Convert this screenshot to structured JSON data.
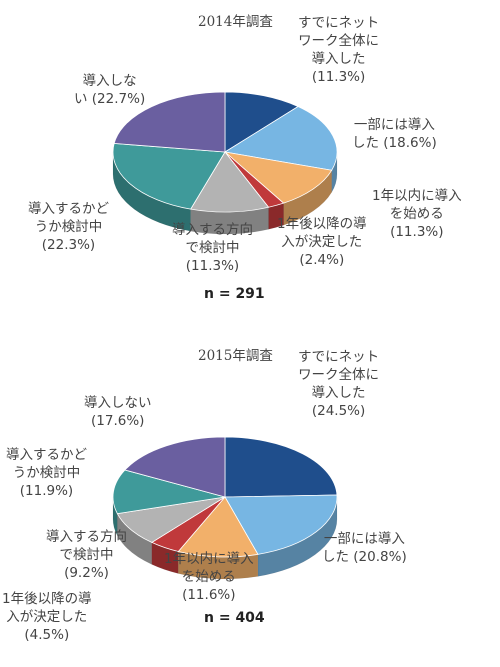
{
  "chart_data": [
    {
      "type": "pie",
      "title": "2014年調査",
      "n_label": "n = 291",
      "categories": [
        "すでにネットワーク全体に導入した",
        "一部には導入した",
        "1年以内に導入を始める",
        "1年後以降の導入が決定した",
        "導入する方向で検討中",
        "導入するかどうか検討中",
        "導入しない"
      ],
      "values": [
        11.3,
        18.6,
        11.3,
        2.4,
        11.3,
        22.3,
        22.7
      ],
      "labels": [
        "すでにネット\nワーク全体に\n導入した\n(11.3%)",
        "一部には導入\nした (18.6%)",
        "1年以内に導入\nを始める\n(11.3%)",
        "1年後以降の導\n入が決定した\n(2.4%)",
        "導入する方向\nで検討中\n(11.3%)",
        "導入するかど\nうか検討中\n(22.3%)",
        "導入しな\nい (22.7%)"
      ],
      "colors": [
        "#1f4e8c",
        "#77b6e3",
        "#f2b06a",
        "#c0393b",
        "#b3b3b3",
        "#3f9a9a",
        "#6a5fa0"
      ]
    },
    {
      "type": "pie",
      "title": "2015年調査",
      "n_label": "n = 404",
      "categories": [
        "すでにネットワーク全体に導入した",
        "一部には導入した",
        "1年以内に導入を始める",
        "1年後以降の導入が決定した",
        "導入する方向で検討中",
        "導入するかどうか検討中",
        "導入しない"
      ],
      "values": [
        24.5,
        20.8,
        11.6,
        4.5,
        9.2,
        11.9,
        17.6
      ],
      "labels": [
        "すでにネット\nワーク全体に\n導入した\n(24.5%)",
        "一部には導入\nした (20.8%)",
        "1年以内に導入\nを始める\n(11.6%)",
        "1年後以降の導\n入が決定した\n(4.5%)",
        "導入する方向\nで検討中\n(9.2%)",
        "導入するかど\nうか検討中\n(11.9%)",
        "導入しない\n(17.6%)"
      ],
      "colors": [
        "#1f4e8c",
        "#77b6e3",
        "#f2b06a",
        "#c0393b",
        "#b3b3b3",
        "#3f9a9a",
        "#6a5fa0"
      ]
    }
  ]
}
